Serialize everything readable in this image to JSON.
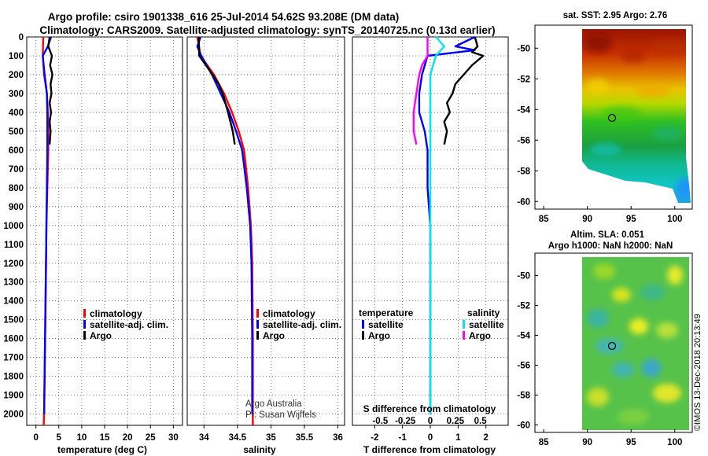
{
  "title_line1": "Argo profile: csiro 1901338_616 25-Jul-2014 54.62S 93.208E (DM data)",
  "title_line2": "Climatology: CARS2009. Satellite-adjusted climatology: synTS_20140725.nc (0.13d earlier)",
  "colors": {
    "climatology": "#ff0000",
    "satellite": "#0000ff",
    "argo": "#000000",
    "sal_satellite": "#00e5ee",
    "sal_argo": "#ff00ff"
  },
  "chart_data": [
    {
      "type": "line",
      "name": "temperature",
      "xlabel": "temperature (deg C)",
      "ylabel": "pressure",
      "xlim": [
        -2,
        32
      ],
      "ylim": [
        2060,
        0
      ],
      "xticks": [
        "0",
        "5",
        "10",
        "15",
        "20",
        "25",
        "30"
      ],
      "xtick_values": [
        0,
        5,
        10,
        15,
        20,
        25,
        30
      ],
      "yticks": [
        "0",
        "100",
        "200",
        "300",
        "400",
        "500",
        "600",
        "700",
        "800",
        "900",
        "1000",
        "1100",
        "1200",
        "1300",
        "1400",
        "1500",
        "1600",
        "1700",
        "1800",
        "1900",
        "2000"
      ],
      "ytick_values": [
        0,
        100,
        200,
        300,
        400,
        500,
        600,
        700,
        800,
        900,
        1000,
        1100,
        1200,
        1300,
        1400,
        1500,
        1600,
        1700,
        1800,
        1900,
        2000
      ],
      "legend": [
        "climatology",
        "satellite-adj. clim.",
        "Argo"
      ],
      "series": [
        {
          "name": "climatology",
          "color": "#ff0000",
          "points": [
            [
              1.6,
              0
            ],
            [
              1.5,
              100
            ],
            [
              1.8,
              200
            ],
            [
              2.4,
              300
            ],
            [
              2.6,
              400
            ],
            [
              2.7,
              500
            ],
            [
              2.7,
              600
            ],
            [
              2.6,
              700
            ],
            [
              2.5,
              800
            ],
            [
              2.4,
              900
            ],
            [
              2.3,
              1000
            ],
            [
              2.2,
              1200
            ],
            [
              2.1,
              1400
            ],
            [
              2.0,
              1600
            ],
            [
              1.9,
              1800
            ],
            [
              1.8,
              2000
            ],
            [
              1.7,
              2060
            ]
          ]
        },
        {
          "name": "satellite-adj. clim.",
          "color": "#0000ff",
          "points": [
            [
              3.3,
              0
            ],
            [
              2.6,
              50
            ],
            [
              1.5,
              100
            ],
            [
              1.9,
              200
            ],
            [
              2.4,
              300
            ],
            [
              2.5,
              400
            ],
            [
              2.5,
              600
            ],
            [
              2.4,
              800
            ],
            [
              2.3,
              1000
            ],
            [
              2.2,
              1200
            ],
            [
              2.1,
              1400
            ],
            [
              2.0,
              1600
            ],
            [
              1.9,
              1800
            ],
            [
              1.8,
              2000
            ]
          ]
        },
        {
          "name": "Argo",
          "color": "#000000",
          "points": [
            [
              3.0,
              0
            ],
            [
              2.7,
              50
            ],
            [
              3.5,
              100
            ],
            [
              3.1,
              150
            ],
            [
              3.6,
              200
            ],
            [
              3.2,
              250
            ],
            [
              3.4,
              300
            ],
            [
              3.0,
              350
            ],
            [
              3.3,
              400
            ],
            [
              3.0,
              450
            ],
            [
              3.2,
              500
            ],
            [
              3.0,
              570
            ]
          ]
        }
      ]
    },
    {
      "type": "line",
      "name": "salinity",
      "xlabel": "salinity",
      "xlim": [
        33.75,
        36.1
      ],
      "ylim": [
        2060,
        0
      ],
      "xticks": [
        "34",
        "34.5",
        "35",
        "35.5",
        "36"
      ],
      "xtick_values": [
        34,
        34.5,
        35,
        35.5,
        36
      ],
      "legend": [
        "climatology",
        "satellite-adj. clim.",
        "Argo"
      ],
      "notes": [
        "Argo Australia",
        "PI: Susan Wijffels"
      ],
      "series": [
        {
          "name": "climatology",
          "color": "#ff0000",
          "points": [
            [
              33.9,
              0
            ],
            [
              33.95,
              100
            ],
            [
              34.05,
              150
            ],
            [
              34.15,
              200
            ],
            [
              34.3,
              300
            ],
            [
              34.42,
              400
            ],
            [
              34.52,
              500
            ],
            [
              34.6,
              600
            ],
            [
              34.66,
              800
            ],
            [
              34.7,
              1000
            ],
            [
              34.72,
              1200
            ],
            [
              34.73,
              1600
            ],
            [
              34.73,
              2060
            ]
          ]
        },
        {
          "name": "satellite-adj. clim.",
          "color": "#0000ff",
          "points": [
            [
              33.95,
              0
            ],
            [
              33.9,
              50
            ],
            [
              33.96,
              100
            ],
            [
              34.04,
              150
            ],
            [
              34.12,
              200
            ],
            [
              34.25,
              300
            ],
            [
              34.38,
              400
            ],
            [
              34.48,
              500
            ],
            [
              34.57,
              600
            ],
            [
              34.64,
              800
            ],
            [
              34.69,
              1000
            ],
            [
              34.71,
              1200
            ],
            [
              34.72,
              1600
            ],
            [
              34.72,
              2000
            ]
          ]
        },
        {
          "name": "Argo",
          "color": "#000000",
          "points": [
            [
              33.92,
              0
            ],
            [
              33.93,
              100
            ],
            [
              34.05,
              160
            ],
            [
              34.13,
              200
            ],
            [
              34.22,
              250
            ],
            [
              34.28,
              300
            ],
            [
              34.36,
              400
            ],
            [
              34.43,
              500
            ],
            [
              34.46,
              570
            ]
          ]
        }
      ]
    },
    {
      "type": "line",
      "name": "difference",
      "xlabel": "T difference from climatology",
      "xlabel_top": "S difference from climatology",
      "xlim": [
        -2.8,
        2.8
      ],
      "ylim": [
        2060,
        0
      ],
      "xticks": [
        "-2",
        "-1",
        "0",
        "1",
        "2"
      ],
      "xtick_values": [
        -2,
        -1,
        0,
        1,
        2
      ],
      "xticks_top": [
        "-0.5",
        "-0.25",
        "0",
        "0.25",
        "0.5"
      ],
      "xtick_top_values": [
        -1.8,
        -0.9,
        0,
        0.9,
        1.8
      ],
      "legend_left_title": "temperature",
      "legend_left": [
        "satellite",
        "Argo"
      ],
      "legend_right_title": "salinity",
      "legend_right": [
        "satellite",
        "Argo"
      ],
      "series": [
        {
          "name": "temperature satellite",
          "color": "#0000ff",
          "points": [
            [
              1.6,
              0
            ],
            [
              0.9,
              50
            ],
            [
              1.6,
              70
            ],
            [
              -0.1,
              100
            ],
            [
              -0.3,
              200
            ],
            [
              -0.4,
              300
            ],
            [
              -0.4,
              400
            ],
            [
              -0.2,
              500
            ],
            [
              -0.1,
              600
            ],
            [
              -0.1,
              800
            ],
            [
              0,
              1000
            ],
            [
              0,
              1400
            ],
            [
              0,
              1800
            ],
            [
              0,
              2000
            ]
          ]
        },
        {
          "name": "temperature Argo",
          "color": "#000000",
          "points": [
            [
              1.6,
              0
            ],
            [
              1.7,
              50
            ],
            [
              1.5,
              80
            ],
            [
              1.9,
              100
            ],
            [
              1.5,
              150
            ],
            [
              1.2,
              200
            ],
            [
              0.9,
              250
            ],
            [
              0.8,
              300
            ],
            [
              0.6,
              350
            ],
            [
              0.7,
              400
            ],
            [
              0.5,
              450
            ],
            [
              0.6,
              500
            ],
            [
              0.5,
              570
            ]
          ]
        },
        {
          "name": "salinity satellite",
          "color": "#00e5ee",
          "points": [
            [
              0.2,
              0
            ],
            [
              0.5,
              50
            ],
            [
              0.2,
              100
            ],
            [
              0,
              200
            ],
            [
              0,
              600
            ],
            [
              0,
              800
            ],
            [
              0,
              1000
            ],
            [
              0,
              1400
            ],
            [
              0,
              1800
            ],
            [
              0,
              2000
            ]
          ]
        },
        {
          "name": "salinity Argo",
          "color": "#ff00ff",
          "points": [
            [
              -0.1,
              0
            ],
            [
              -0.1,
              100
            ],
            [
              -0.3,
              150
            ],
            [
              -0.4,
              200
            ],
            [
              -0.5,
              300
            ],
            [
              -0.6,
              400
            ],
            [
              -0.6,
              500
            ],
            [
              -0.5,
              570
            ]
          ]
        }
      ]
    },
    {
      "type": "heatmap",
      "name": "sst map",
      "title": "sat. SST: 2.95 Argo: 2.76",
      "xlim": [
        84,
        102
      ],
      "ylim": [
        -60.5,
        -48.5
      ],
      "xticks": [
        "85",
        "90",
        "95",
        "100"
      ],
      "xtick_values": [
        85,
        90,
        95,
        100
      ],
      "yticks": [
        "-50",
        "-52",
        "-54",
        "-56",
        "-58",
        "-60"
      ],
      "ytick_values": [
        -50,
        -52,
        -54,
        -56,
        -58,
        -60
      ],
      "float_position": [
        93.208,
        -54.62
      ]
    },
    {
      "type": "heatmap",
      "name": "sla map",
      "title_line1": "Altim. SLA: 0.051",
      "title_line2": "Argo h1000: NaN h2000: NaN",
      "xlim": [
        84,
        102
      ],
      "ylim": [
        -60.5,
        -48.5
      ],
      "xticks": [
        "85",
        "90",
        "95",
        "100"
      ],
      "xtick_values": [
        85,
        90,
        95,
        100
      ],
      "yticks": [
        "-50",
        "-52",
        "-54",
        "-56",
        "-58",
        "-60"
      ],
      "ytick_values": [
        -50,
        -52,
        -54,
        -56,
        -58,
        -60
      ],
      "float_position": [
        93.208,
        -54.62
      ]
    }
  ],
  "credit": "©IMOS 13-Dec-2018 20:13:49"
}
